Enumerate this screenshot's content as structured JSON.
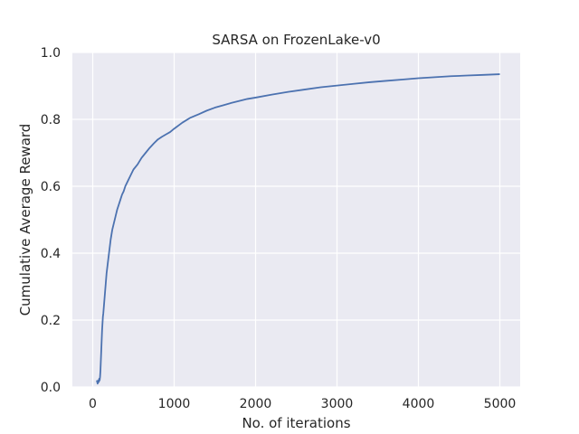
{
  "chart_data": {
    "type": "line",
    "title": "SARSA on FrozenLake-v0",
    "xlabel": "No. of iterations",
    "ylabel": "Cumulative Average Reward",
    "xlim": [
      -250,
      5250
    ],
    "ylim": [
      0.0,
      1.0
    ],
    "xticks": [
      0,
      1000,
      2000,
      3000,
      4000,
      5000
    ],
    "xtick_labels": [
      "0",
      "1000",
      "2000",
      "3000",
      "4000",
      "5000"
    ],
    "yticks": [
      0.0,
      0.2,
      0.4,
      0.6,
      0.8,
      1.0
    ],
    "ytick_labels": [
      "0.0",
      "0.2",
      "0.4",
      "0.6",
      "0.8",
      "1.0"
    ],
    "grid": true,
    "colors": {
      "background": "#eaeaf2",
      "grid": "#ffffff",
      "line": "#4c72b0"
    },
    "series": [
      {
        "x": [
          50,
          60,
          70,
          75,
          80,
          85,
          90,
          95,
          100,
          105,
          110,
          115,
          120,
          125,
          130,
          140,
          150,
          160,
          170,
          180,
          190,
          200,
          220,
          240,
          260,
          280,
          300,
          320,
          340,
          360,
          380,
          400,
          430,
          460,
          500,
          550,
          600,
          650,
          700,
          750,
          800,
          850,
          900,
          950,
          1000,
          1100,
          1200,
          1300,
          1400,
          1500,
          1600,
          1700,
          1800,
          1900,
          2000,
          2200,
          2400,
          2600,
          2800,
          3000,
          3200,
          3400,
          3600,
          3800,
          4000,
          4200,
          4400,
          4600,
          4800,
          5000
        ],
        "y": [
          0.02,
          0.01,
          0.02,
          0.015,
          0.025,
          0.02,
          0.03,
          0.05,
          0.08,
          0.11,
          0.14,
          0.17,
          0.19,
          0.21,
          0.22,
          0.25,
          0.28,
          0.31,
          0.34,
          0.36,
          0.38,
          0.4,
          0.44,
          0.47,
          0.49,
          0.51,
          0.53,
          0.545,
          0.56,
          0.575,
          0.585,
          0.6,
          0.615,
          0.63,
          0.65,
          0.665,
          0.685,
          0.7,
          0.715,
          0.728,
          0.74,
          0.748,
          0.755,
          0.762,
          0.772,
          0.79,
          0.805,
          0.815,
          0.826,
          0.835,
          0.842,
          0.849,
          0.855,
          0.861,
          0.865,
          0.874,
          0.882,
          0.889,
          0.896,
          0.901,
          0.906,
          0.911,
          0.915,
          0.919,
          0.923,
          0.926,
          0.929,
          0.931,
          0.933,
          0.935
        ]
      }
    ]
  }
}
